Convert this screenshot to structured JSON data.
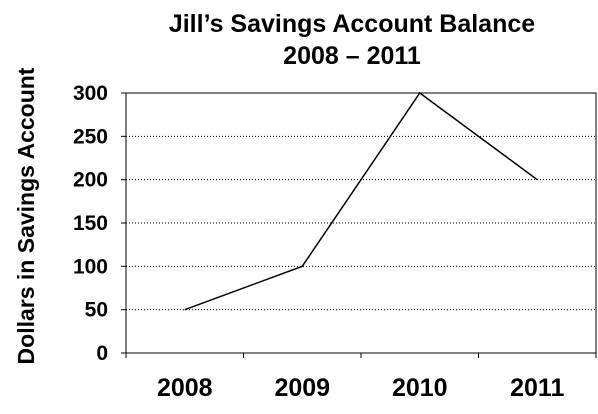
{
  "chart_data": {
    "type": "line",
    "title": [
      "Jill’s Savings Account Balance",
      "2008 – 2011"
    ],
    "xlabel": "",
    "ylabel": "Dollars in Savings Account",
    "categories": [
      "2008",
      "2009",
      "2010",
      "2011"
    ],
    "series": [
      {
        "values": [
          50,
          100,
          300,
          200
        ]
      }
    ],
    "ylim": [
      0,
      300
    ],
    "yticks": [
      0,
      50,
      100,
      150,
      200,
      250,
      300
    ],
    "grid": "horizontal-dotted",
    "legend": "none",
    "colors": {
      "line": "#000000",
      "grid": "#000000",
      "axis": "#000000",
      "text": "#000000"
    }
  }
}
